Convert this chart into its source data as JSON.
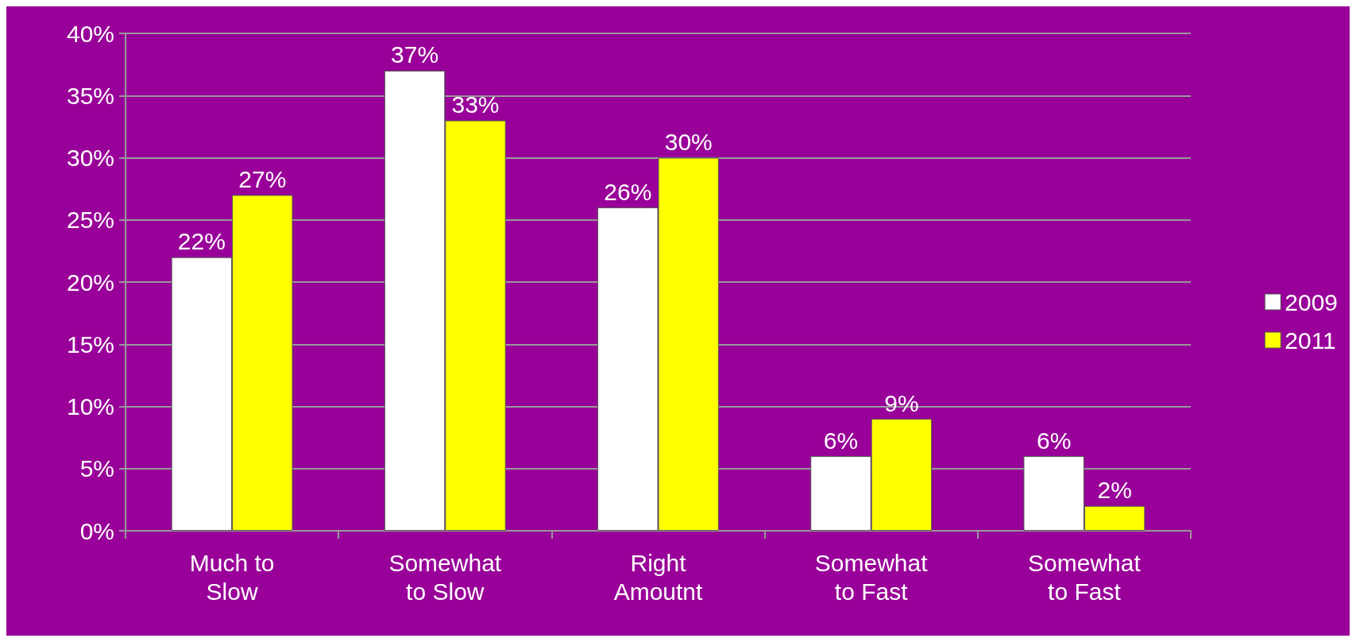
{
  "chart_data": {
    "type": "bar",
    "categories": [
      "Much to\nSlow",
      "Somewhat\nto Slow",
      "Right\nAmoutnt",
      "Somewhat\nto Fast",
      "Somewhat\nto Fast"
    ],
    "series": [
      {
        "name": "2009",
        "color": "#ffffff",
        "values": [
          22,
          37,
          26,
          6,
          6
        ],
        "value_labels": [
          "22%",
          "37%",
          "26%",
          "6%",
          "6%"
        ]
      },
      {
        "name": "2011",
        "color": "#ffff00",
        "values": [
          27,
          33,
          30,
          9,
          2
        ],
        "value_labels": [
          "27%",
          "33%",
          "30%",
          "9%",
          "2%"
        ]
      }
    ],
    "ylim": [
      0,
      40
    ],
    "yticks": [
      {
        "value": 0,
        "label": "0%"
      },
      {
        "value": 5,
        "label": "5%"
      },
      {
        "value": 10,
        "label": "10%"
      },
      {
        "value": 15,
        "label": "15%"
      },
      {
        "value": 20,
        "label": "20%"
      },
      {
        "value": 25,
        "label": "25%"
      },
      {
        "value": 30,
        "label": "30%"
      },
      {
        "value": 35,
        "label": "35%"
      },
      {
        "value": 40,
        "label": "40%"
      }
    ],
    "grid": "y",
    "legend": "right"
  }
}
